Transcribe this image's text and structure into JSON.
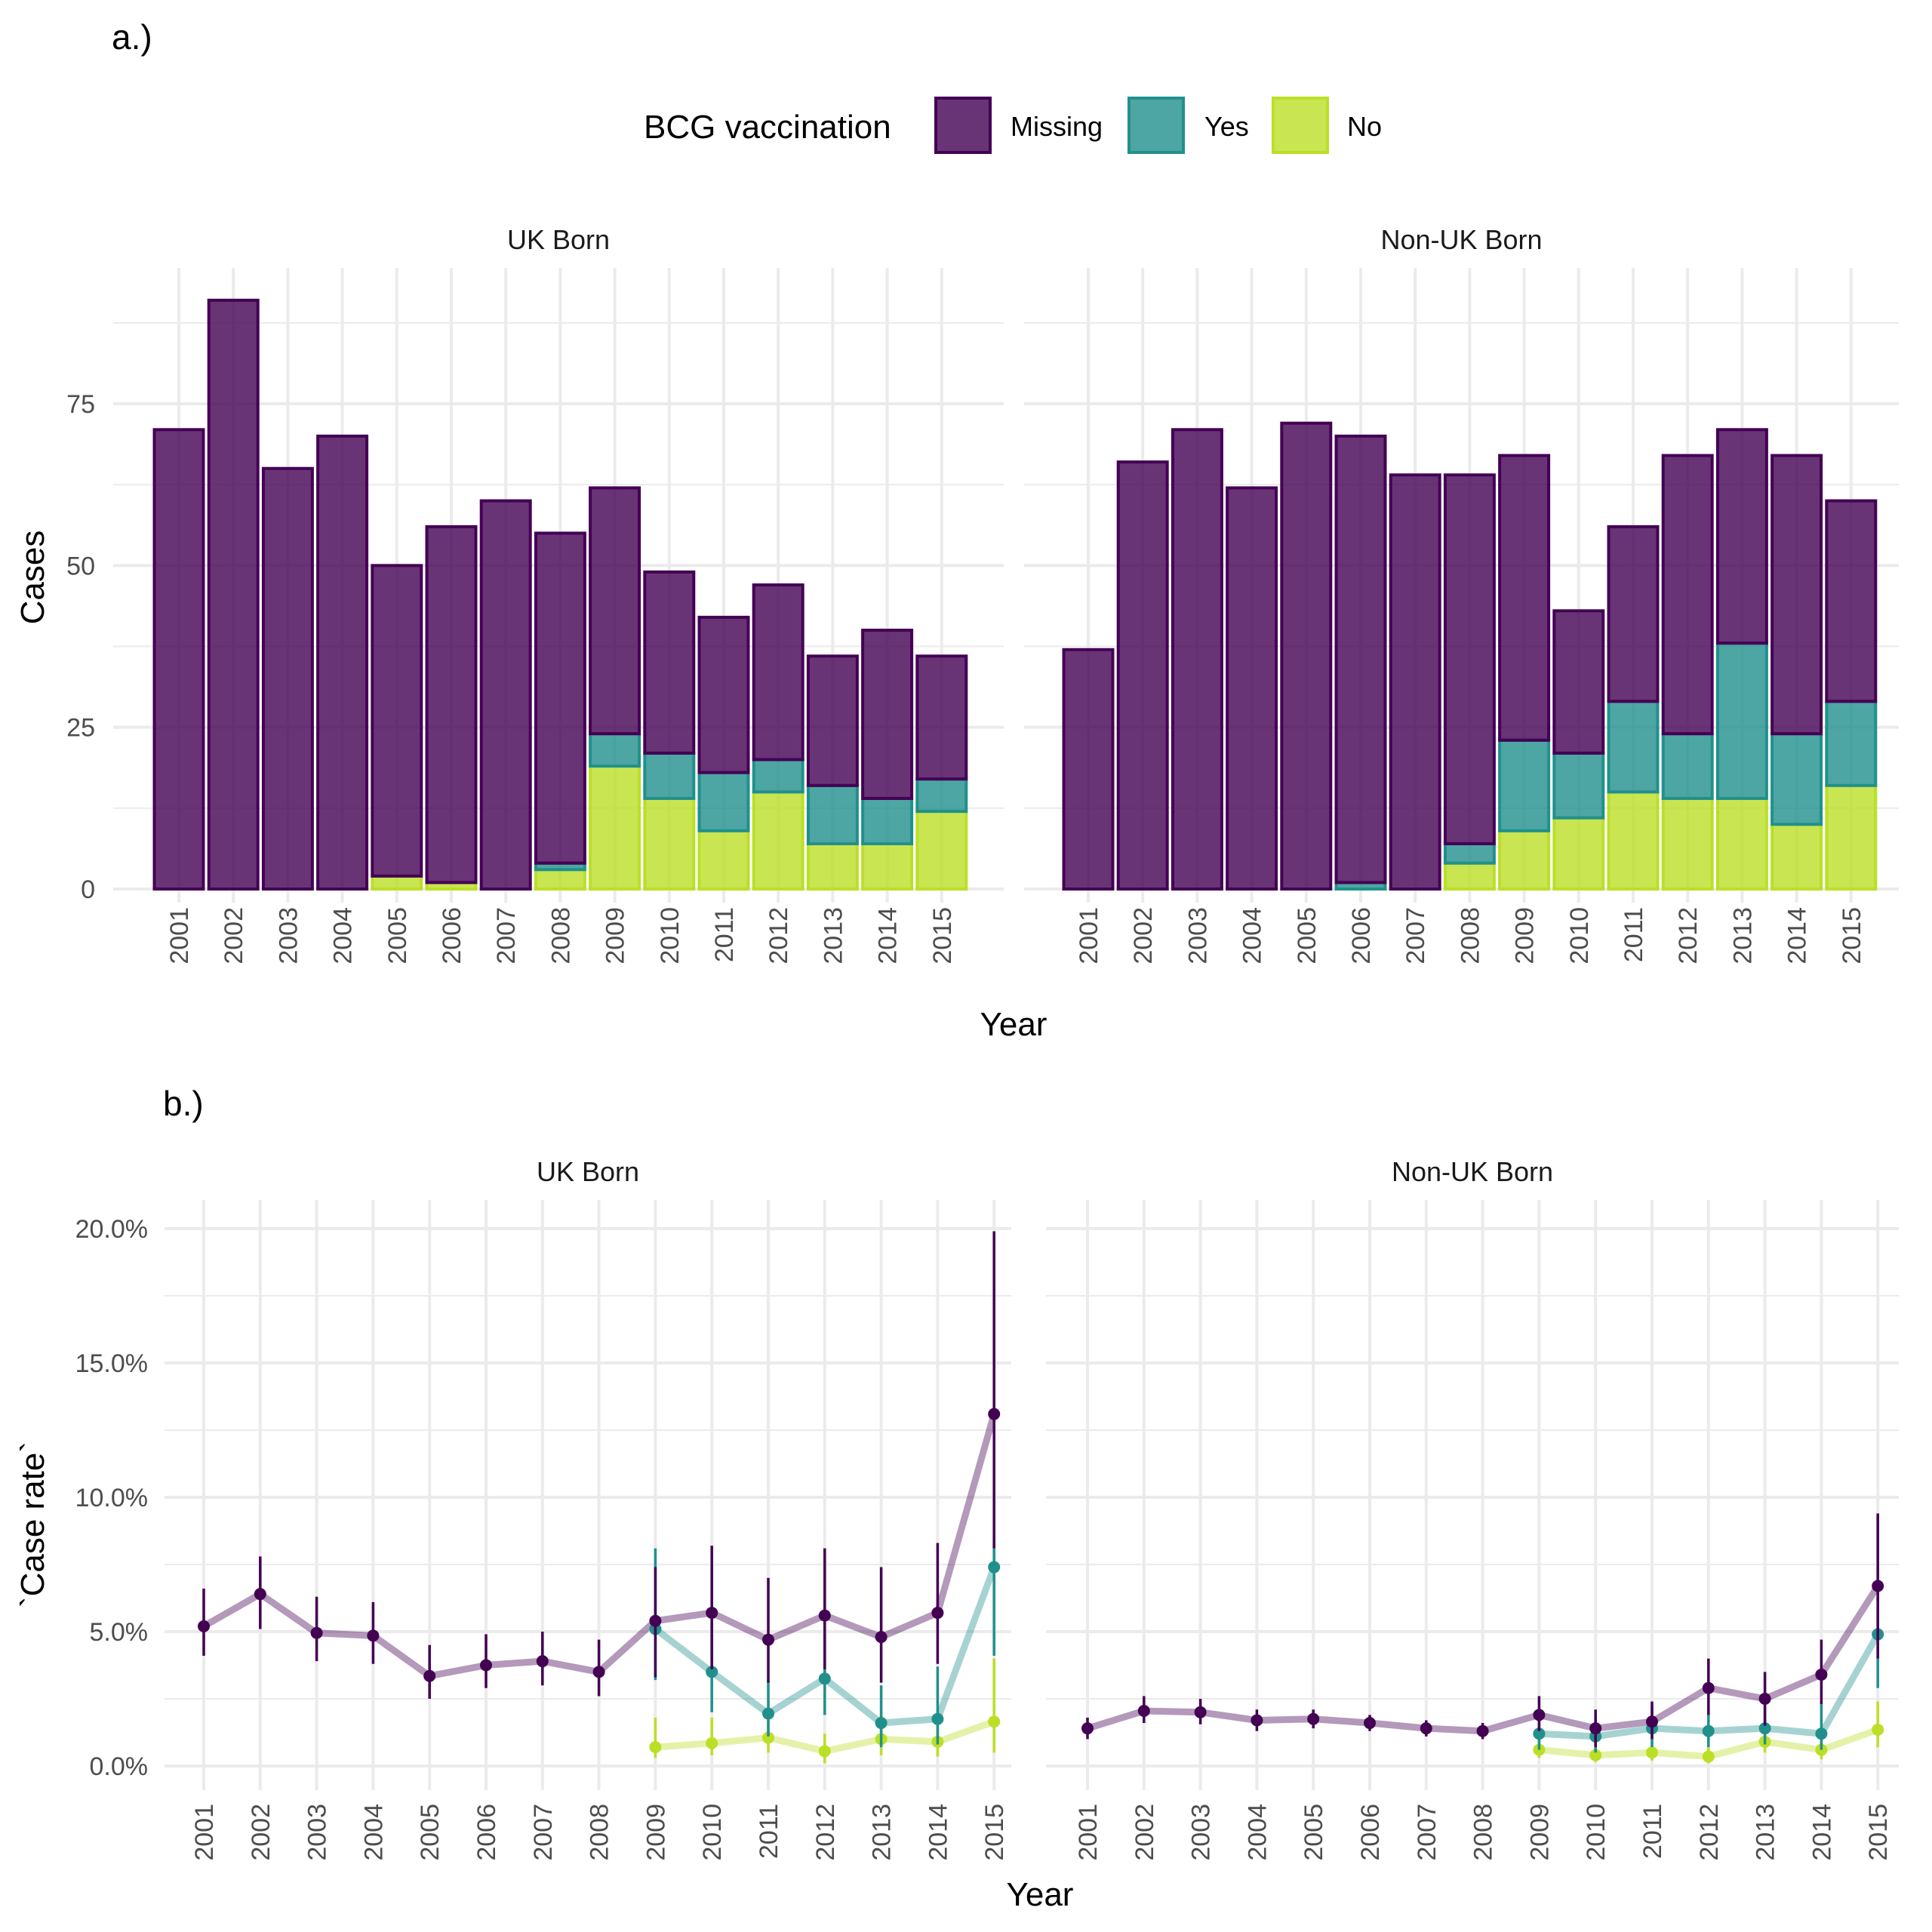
{
  "panel_a_label": "a.)",
  "panel_b_label": "b.)",
  "legend": {
    "title": "BCG vaccination",
    "items": [
      {
        "label": "Missing",
        "fill": "#440154",
        "stroke": "#440154"
      },
      {
        "label": "Yes",
        "fill": "#21908C",
        "stroke": "#21908C"
      },
      {
        "label": "No",
        "fill": "#BBDF27",
        "stroke": "#BBDF27"
      }
    ]
  },
  "colors": {
    "missing": "#440154",
    "yes": "#21908C",
    "no": "#BBDF27",
    "grid": "#EBEBEB",
    "axis_text": "#4D4D4D"
  },
  "chart_data": [
    {
      "type": "bar",
      "stacked": true,
      "panel": "a.)",
      "ylabel": "Cases",
      "xlabel": "Year",
      "ylim": [
        0,
        91
      ],
      "yticks": [
        0,
        25,
        50,
        75
      ],
      "ytick_labels": [
        "0",
        "25",
        "50",
        "75"
      ],
      "categories": [
        "2001",
        "2002",
        "2003",
        "2004",
        "2005",
        "2006",
        "2007",
        "2008",
        "2009",
        "2010",
        "2011",
        "2012",
        "2013",
        "2014",
        "2015"
      ],
      "facets": [
        {
          "title": "UK Born",
          "series": [
            {
              "name": "No",
              "values": [
                0,
                0,
                0,
                0,
                2,
                1,
                0,
                3,
                19,
                14,
                9,
                15,
                7,
                7,
                12
              ]
            },
            {
              "name": "Yes",
              "values": [
                0,
                0,
                0,
                0,
                0,
                0,
                0,
                1,
                5,
                7,
                9,
                5,
                9,
                7,
                5
              ]
            },
            {
              "name": "Missing",
              "values": [
                71,
                91,
                65,
                70,
                48,
                55,
                60,
                51,
                38,
                28,
                24,
                27,
                20,
                26,
                19
              ]
            }
          ]
        },
        {
          "title": "Non-UK Born",
          "series": [
            {
              "name": "No",
              "values": [
                0,
                0,
                0,
                0,
                0,
                0,
                0,
                4,
                9,
                11,
                15,
                14,
                14,
                10,
                16
              ]
            },
            {
              "name": "Yes",
              "values": [
                0,
                0,
                0,
                0,
                0,
                1,
                0,
                3,
                14,
                10,
                14,
                10,
                24,
                14,
                13
              ]
            },
            {
              "name": "Missing",
              "values": [
                37,
                66,
                71,
                62,
                72,
                69,
                64,
                57,
                44,
                22,
                27,
                43,
                33,
                43,
                31
              ]
            }
          ]
        }
      ]
    },
    {
      "type": "line",
      "panel": "b.)",
      "ylabel": "`Case rate`",
      "xlabel": "Year",
      "ylim": [
        0,
        20
      ],
      "yticks": [
        0,
        5,
        10,
        15,
        20
      ],
      "ytick_labels": [
        "0.0%",
        "5.0%",
        "10.0%",
        "15.0%",
        "20.0%"
      ],
      "x": [
        "2001",
        "2002",
        "2003",
        "2004",
        "2005",
        "2006",
        "2007",
        "2008",
        "2009",
        "2010",
        "2011",
        "2012",
        "2013",
        "2014",
        "2015"
      ],
      "facets": [
        {
          "title": "UK Born",
          "series": [
            {
              "name": "Missing",
              "values": [
                5.2,
                6.4,
                4.95,
                4.85,
                3.35,
                3.75,
                3.9,
                3.5,
                5.4,
                5.7,
                4.7,
                5.6,
                4.8,
                5.7,
                13.1
              ],
              "lower": [
                4.1,
                5.1,
                3.9,
                3.8,
                2.5,
                2.9,
                3.0,
                2.6,
                3.3,
                3.6,
                3.1,
                3.6,
                3.1,
                3.8,
                8.1
              ],
              "upper": [
                6.6,
                7.8,
                6.3,
                6.1,
                4.5,
                4.9,
                5.0,
                4.7,
                7.4,
                8.2,
                7.0,
                8.1,
                7.4,
                8.3,
                19.9
              ]
            },
            {
              "name": "Yes",
              "values": [
                null,
                null,
                null,
                null,
                null,
                null,
                null,
                null,
                5.1,
                3.5,
                1.95,
                3.25,
                1.6,
                1.75,
                7.4
              ],
              "lower": [
                null,
                null,
                null,
                null,
                null,
                null,
                null,
                null,
                3.2,
                2.0,
                1.1,
                1.9,
                0.7,
                0.8,
                4.1
              ],
              "upper": [
                null,
                null,
                null,
                null,
                null,
                null,
                null,
                null,
                8.1,
                5.9,
                3.2,
                5.1,
                3.0,
                3.7,
                8.3
              ]
            },
            {
              "name": "No",
              "values": [
                null,
                null,
                null,
                null,
                null,
                null,
                null,
                null,
                0.7,
                0.85,
                1.05,
                0.55,
                1.0,
                0.9,
                1.65
              ],
              "lower": [
                null,
                null,
                null,
                null,
                null,
                null,
                null,
                null,
                0.3,
                0.4,
                0.5,
                0.1,
                0.4,
                0.35,
                0.5
              ],
              "upper": [
                null,
                null,
                null,
                null,
                null,
                null,
                null,
                null,
                1.8,
                1.8,
                1.9,
                1.2,
                2.0,
                1.9,
                4.0
              ]
            }
          ]
        },
        {
          "title": "Non-UK Born",
          "series": [
            {
              "name": "Missing",
              "values": [
                1.4,
                2.05,
                2.0,
                1.7,
                1.75,
                1.6,
                1.4,
                1.3,
                1.9,
                1.4,
                1.65,
                2.9,
                2.5,
                3.4,
                6.7
              ],
              "lower": [
                1.0,
                1.6,
                1.55,
                1.3,
                1.4,
                1.3,
                1.1,
                1.0,
                1.3,
                0.7,
                1.0,
                1.9,
                1.5,
                2.3,
                4.0
              ],
              "upper": [
                1.8,
                2.6,
                2.5,
                2.1,
                2.1,
                1.9,
                1.7,
                1.6,
                2.6,
                2.1,
                2.4,
                4.0,
                3.5,
                4.7,
                9.4
              ]
            },
            {
              "name": "Yes",
              "values": [
                null,
                null,
                null,
                null,
                null,
                null,
                null,
                null,
                1.2,
                1.1,
                1.4,
                1.3,
                1.4,
                1.2,
                4.9
              ],
              "lower": [
                null,
                null,
                null,
                null,
                null,
                null,
                null,
                null,
                0.6,
                0.5,
                0.7,
                0.7,
                0.8,
                0.6,
                2.9
              ],
              "upper": [
                null,
                null,
                null,
                null,
                null,
                null,
                null,
                null,
                1.9,
                1.8,
                2.2,
                2.1,
                2.2,
                2.3,
                6.9
              ]
            },
            {
              "name": "No",
              "values": [
                null,
                null,
                null,
                null,
                null,
                null,
                null,
                null,
                0.6,
                0.4,
                0.5,
                0.35,
                0.9,
                0.6,
                1.35
              ],
              "lower": [
                null,
                null,
                null,
                null,
                null,
                null,
                null,
                null,
                0.3,
                0.15,
                0.2,
                0.1,
                0.5,
                0.25,
                0.7
              ],
              "upper": [
                null,
                null,
                null,
                null,
                null,
                null,
                null,
                null,
                1.0,
                0.8,
                0.9,
                0.7,
                1.4,
                1.1,
                2.4
              ]
            }
          ]
        }
      ]
    }
  ]
}
